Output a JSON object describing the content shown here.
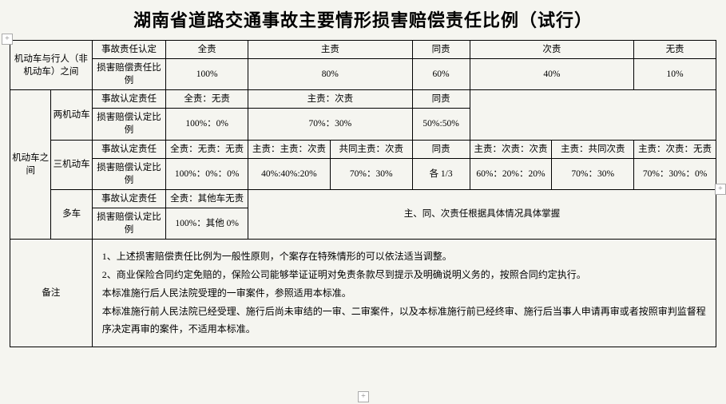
{
  "title": "湖南省道路交通事故主要情形损害赔偿责任比例（试行）",
  "colgroup": [
    50,
    50,
    90,
    100,
    100,
    100,
    70,
    100,
    100,
    100
  ],
  "row1": {
    "c1": "机动车与行人（非机动车）之间",
    "c2": "事故责任认定",
    "c3": "全责",
    "c4": "主责",
    "c5": "同责",
    "c6": "次责",
    "c7": "无责"
  },
  "row2": {
    "c2": "损害赔偿责任比例",
    "c3": "100%",
    "c4": "80%",
    "c5": "60%",
    "c6": "40%",
    "c7": "10%"
  },
  "row3": {
    "c1": "机动车之间",
    "c1b": "两机动车",
    "c2": "事故认定责任",
    "c3": "全责：无责",
    "c4": "主责：次责",
    "c5": "同责"
  },
  "row4": {
    "c2": "损害赔偿认定比例",
    "c3": "100%：0%",
    "c4": "70%：30%",
    "c5": "50%:50%"
  },
  "row5": {
    "c1b": "三机动车",
    "c2": "事故认定责任",
    "c3": "全责：无责：无责",
    "c4a": "主责：主责：次责",
    "c4b": "共同主责：次责",
    "c5": "同责",
    "c6a": "主责：次责：次责",
    "c6b": "主责：共同次责",
    "c7": "主责：次责：无责"
  },
  "row6": {
    "c2": "损害赔偿认定比例",
    "c3": "100%：0%：0%",
    "c4a": "40%:40%:20%",
    "c4b": "70%：30%",
    "c5": "各 1/3",
    "c6a": "60%：20%：20%",
    "c6b": "70%：30%",
    "c7": "70%：30%：0%"
  },
  "row7": {
    "c1b": "多车",
    "c2": "事故认定责任",
    "c3": "全责：其他车无责",
    "c4": "主、同、次责任根据具体情况具体掌握"
  },
  "row8": {
    "c2": "损害赔偿认定比例",
    "c3": "100%：其他 0%"
  },
  "remark_label": "备注",
  "remark_text": "1、上述损害赔偿责任比例为一般性原则，个案存在特殊情形的可以依法适当调整。\n2、商业保险合同约定免赔的，保险公司能够举证证明对免责条款尽到提示及明确说明义务的，按照合同约定执行。\n本标准施行后人民法院受理的一审案件，参照适用本标准。\n本标准施行前人民法院已经受理、施行后尚未审结的一审、二审案件，以及本标准施行前已经终审、施行后当事人申请再审或者按照审判监督程序决定再审的案件，不适用本标准。",
  "handle_glyph": "+"
}
